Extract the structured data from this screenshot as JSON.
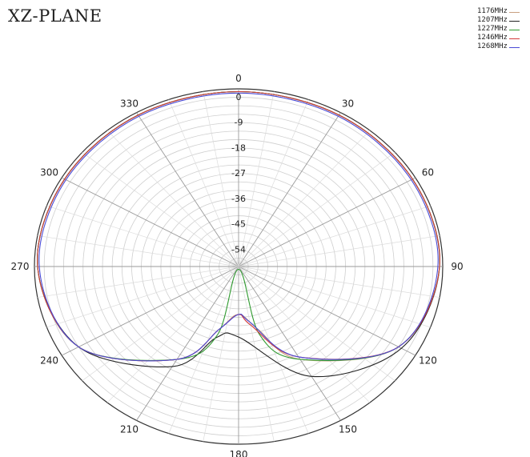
{
  "chart_data": {
    "type": "polar",
    "title": "XZ-PLANE",
    "angle_labels": [
      "0",
      "30",
      "60",
      "90",
      "120",
      "150",
      "180",
      "210",
      "240",
      "270",
      "300",
      "330"
    ],
    "radial_ticks": [
      "0",
      "-9",
      "-18",
      "-27",
      "-36",
      "-45",
      "-54"
    ],
    "radial_range": [
      -63,
      0
    ],
    "grid": true,
    "legend_position": "top-right",
    "series": [
      {
        "name": "1176MHz",
        "color": "#c8a080",
        "points": [
          [
            0,
            -1
          ],
          [
            30,
            -1
          ],
          [
            60,
            -1
          ],
          [
            90,
            -1
          ],
          [
            120,
            -6
          ],
          [
            150,
            -25
          ],
          [
            165,
            -40
          ],
          [
            180,
            -46
          ],
          [
            195,
            -40
          ],
          [
            210,
            -25
          ],
          [
            240,
            -6
          ],
          [
            270,
            -1
          ],
          [
            300,
            -1
          ],
          [
            330,
            -1
          ]
        ]
      },
      {
        "name": "1207MHz",
        "color": "#222222",
        "points": [
          [
            0,
            -1
          ],
          [
            30,
            -1
          ],
          [
            60,
            -1
          ],
          [
            90,
            -1
          ],
          [
            120,
            -5
          ],
          [
            150,
            -18
          ],
          [
            180,
            -38
          ],
          [
            195,
            -37
          ],
          [
            210,
            -22
          ],
          [
            240,
            -6
          ],
          [
            270,
            -1
          ],
          [
            300,
            -1
          ],
          [
            330,
            -1
          ]
        ]
      },
      {
        "name": "1227MHz",
        "color": "#2e9a2e",
        "points": [
          [
            0,
            -1
          ],
          [
            30,
            -1
          ],
          [
            60,
            -1
          ],
          [
            90,
            -1
          ],
          [
            120,
            -6
          ],
          [
            150,
            -25
          ],
          [
            165,
            -38
          ],
          [
            180,
            -62
          ],
          [
            195,
            -38
          ],
          [
            210,
            -25
          ],
          [
            240,
            -6
          ],
          [
            270,
            -1
          ],
          [
            300,
            -1
          ],
          [
            330,
            -1
          ]
        ]
      },
      {
        "name": "1246MHz",
        "color": "#d23a3a",
        "points": [
          [
            0,
            -1
          ],
          [
            30,
            -1
          ],
          [
            60,
            -1
          ],
          [
            90,
            -1
          ],
          [
            120,
            -6
          ],
          [
            150,
            -26
          ],
          [
            170,
            -42
          ],
          [
            180,
            -46
          ],
          [
            195,
            -40
          ],
          [
            210,
            -25
          ],
          [
            240,
            -6
          ],
          [
            270,
            -1
          ],
          [
            300,
            -1
          ],
          [
            330,
            -1
          ]
        ]
      },
      {
        "name": "1268MHz",
        "color": "#4a4ad6",
        "points": [
          [
            0,
            -1.5
          ],
          [
            30,
            -1.5
          ],
          [
            60,
            -1.5
          ],
          [
            90,
            -1.5
          ],
          [
            120,
            -6
          ],
          [
            150,
            -26
          ],
          [
            170,
            -43
          ],
          [
            180,
            -46
          ],
          [
            195,
            -40
          ],
          [
            210,
            -25
          ],
          [
            240,
            -6
          ],
          [
            270,
            -1.5
          ],
          [
            300,
            -1.5
          ],
          [
            330,
            -1.5
          ]
        ]
      }
    ]
  }
}
